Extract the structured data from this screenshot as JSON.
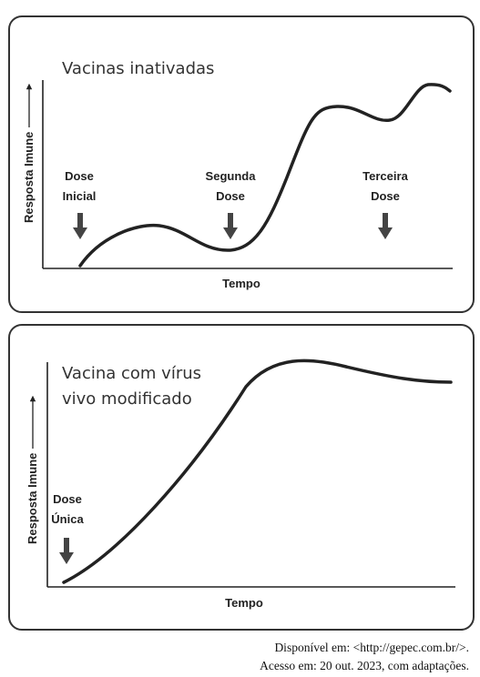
{
  "panels": [
    {
      "title": [
        "Vacinas inativadas"
      ],
      "y_label": "Resposta Imune",
      "x_label": "Tempo",
      "doses": [
        {
          "lines": [
            "Dose",
            "Inicial"
          ]
        },
        {
          "lines": [
            "Segunda",
            "Dose"
          ]
        },
        {
          "lines": [
            "Terceira",
            "Dose"
          ]
        }
      ]
    },
    {
      "title": [
        "Vacina com vírus",
        "vivo modificado"
      ],
      "y_label": "Resposta Imune",
      "x_label": "Tempo",
      "doses": [
        {
          "lines": [
            "Dose",
            "Única"
          ]
        }
      ]
    }
  ],
  "source": [
    "Disponível em: <http://gepec.com.br/>.",
    "Acesso em: 20 out. 2023, com adaptações."
  ]
}
